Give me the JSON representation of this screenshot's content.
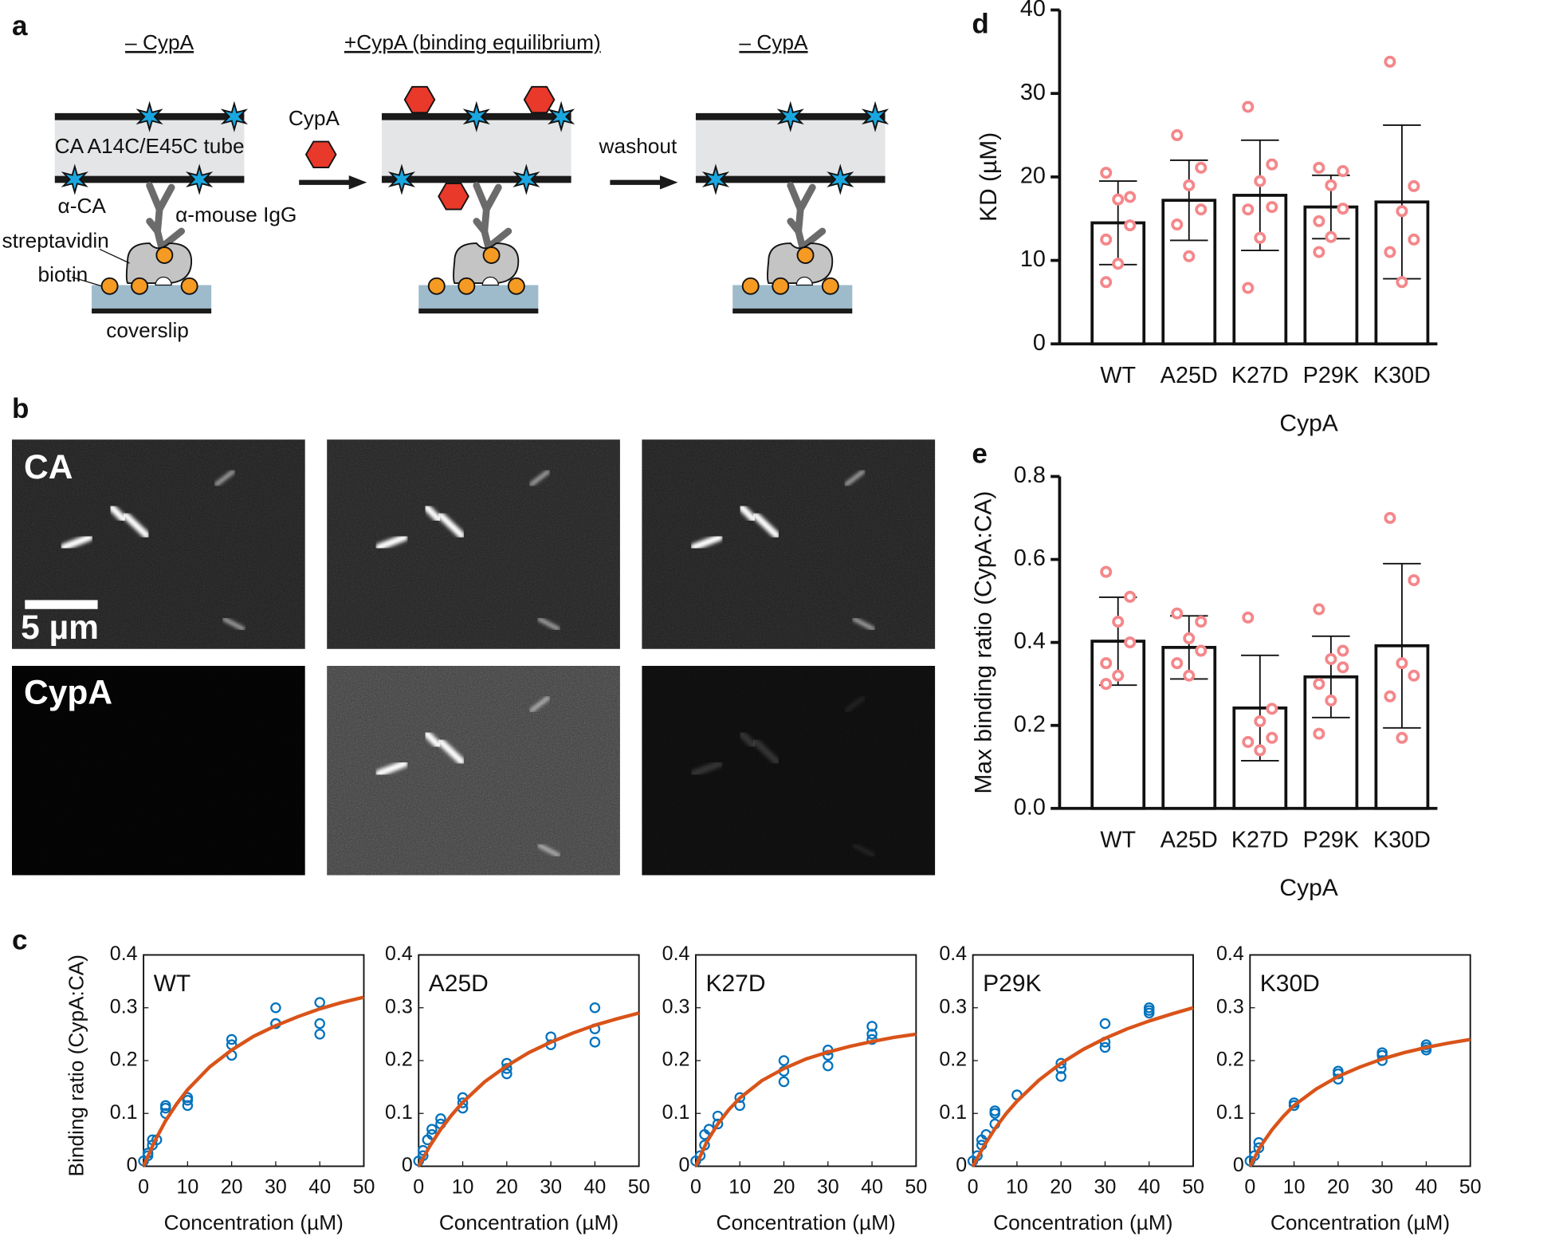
{
  "panel_labels": [
    "a",
    "b",
    "c",
    "d",
    "e"
  ],
  "diagram": {
    "headers": [
      "– CypA",
      "+CypA (binding equilibrium)",
      "– CypA"
    ],
    "tube_label": "CA A14C/E45C tube",
    "reagent": "CypA",
    "wash": "washout",
    "antibody": "α-CA",
    "secondary": "α-mouse IgG",
    "streptavidin": "streptavidin",
    "biotin": "biotin",
    "coverslip": "coverslip"
  },
  "micrographs": {
    "row_labels": [
      "CA",
      "CypA"
    ],
    "scale_bar": "5 µm"
  },
  "chart_data": [
    {
      "type": "scatter",
      "title": "WT",
      "x_label": "Concentration (µM)",
      "y_label": "Binding ratio (CypA:CA)",
      "xlim": [
        0,
        50
      ],
      "ylim": [
        0,
        0.4
      ],
      "xticks": [
        0,
        10,
        20,
        30,
        40,
        50
      ],
      "yticks": [
        0,
        0.1,
        0.2,
        0.3,
        0.4
      ],
      "series": [
        {
          "mode": "markers",
          "color": "#0072bd",
          "x": [
            0,
            1,
            1,
            2,
            2,
            3,
            5,
            5,
            5,
            10,
            10,
            10,
            20,
            20,
            20,
            30,
            30,
            30,
            40,
            40,
            40
          ],
          "values": [
            0.01,
            0.02,
            0.025,
            0.04,
            0.05,
            0.05,
            0.1,
            0.11,
            0.115,
            0.115,
            0.125,
            0.13,
            0.21,
            0.23,
            0.24,
            0.27,
            0.27,
            0.3,
            0.25,
            0.27,
            0.31
          ]
        },
        {
          "mode": "line",
          "color": "#d95319",
          "x": [
            0,
            2.5,
            5,
            7.5,
            10,
            15,
            20,
            25,
            30,
            35,
            40,
            45,
            50
          ],
          "values": [
            0,
            0.047,
            0.086,
            0.118,
            0.145,
            0.188,
            0.22,
            0.246,
            0.266,
            0.283,
            0.298,
            0.31,
            0.32
          ]
        }
      ]
    },
    {
      "type": "scatter",
      "title": "A25D",
      "x_label": "Concentration (µM)",
      "xlim": [
        0,
        50
      ],
      "ylim": [
        0,
        0.4
      ],
      "xticks": [
        0,
        10,
        20,
        30,
        40,
        50
      ],
      "yticks": [
        0,
        0.1,
        0.2,
        0.3,
        0.4
      ],
      "series": [
        {
          "mode": "markers",
          "color": "#0072bd",
          "x": [
            0,
            1,
            1,
            2,
            3,
            3,
            5,
            5,
            10,
            10,
            10,
            20,
            20,
            20,
            30,
            30,
            40,
            40,
            40
          ],
          "values": [
            0.01,
            0.02,
            0.03,
            0.05,
            0.06,
            0.07,
            0.08,
            0.09,
            0.11,
            0.12,
            0.13,
            0.175,
            0.185,
            0.195,
            0.23,
            0.245,
            0.235,
            0.26,
            0.3
          ]
        },
        {
          "mode": "line",
          "color": "#d95319",
          "x": [
            0,
            2.5,
            5,
            7.5,
            10,
            15,
            20,
            25,
            30,
            35,
            40,
            45,
            50
          ],
          "values": [
            0,
            0.038,
            0.07,
            0.097,
            0.121,
            0.16,
            0.19,
            0.215,
            0.235,
            0.252,
            0.267,
            0.279,
            0.29
          ]
        }
      ]
    },
    {
      "type": "scatter",
      "title": "K27D",
      "x_label": "Concentration (µM)",
      "xlim": [
        0,
        50
      ],
      "ylim": [
        0,
        0.4
      ],
      "xticks": [
        0,
        10,
        20,
        30,
        40,
        50
      ],
      "yticks": [
        0,
        0.1,
        0.2,
        0.3,
        0.4
      ],
      "series": [
        {
          "mode": "markers",
          "color": "#0072bd",
          "x": [
            0,
            1,
            2,
            2,
            3,
            5,
            5,
            10,
            10,
            20,
            20,
            20,
            30,
            30,
            30,
            40,
            40,
            40
          ],
          "values": [
            0.01,
            0.02,
            0.04,
            0.06,
            0.07,
            0.08,
            0.095,
            0.115,
            0.13,
            0.16,
            0.18,
            0.2,
            0.19,
            0.21,
            0.22,
            0.24,
            0.25,
            0.265
          ]
        },
        {
          "mode": "line",
          "color": "#d95319",
          "x": [
            0,
            2.5,
            5,
            7.5,
            10,
            15,
            20,
            25,
            30,
            35,
            40,
            45,
            50
          ],
          "values": [
            0,
            0.046,
            0.08,
            0.107,
            0.129,
            0.162,
            0.185,
            0.203,
            0.216,
            0.227,
            0.236,
            0.244,
            0.25
          ]
        }
      ]
    },
    {
      "type": "scatter",
      "title": "P29K",
      "x_label": "Concentration (µM)",
      "xlim": [
        0,
        50
      ],
      "ylim": [
        0,
        0.4
      ],
      "xticks": [
        0,
        10,
        20,
        30,
        40,
        50
      ],
      "yticks": [
        0,
        0.1,
        0.2,
        0.3,
        0.4
      ],
      "series": [
        {
          "mode": "markers",
          "color": "#0072bd",
          "x": [
            0,
            1,
            2,
            2,
            3,
            5,
            5,
            5,
            10,
            20,
            20,
            20,
            30,
            30,
            30,
            40,
            40,
            40
          ],
          "values": [
            0.01,
            0.02,
            0.04,
            0.05,
            0.06,
            0.08,
            0.1,
            0.105,
            0.135,
            0.17,
            0.185,
            0.195,
            0.225,
            0.235,
            0.27,
            0.29,
            0.295,
            0.3
          ]
        },
        {
          "mode": "line",
          "color": "#d95319",
          "x": [
            0,
            2.5,
            5,
            7.5,
            10,
            15,
            20,
            25,
            30,
            35,
            40,
            45,
            50
          ],
          "values": [
            0,
            0.038,
            0.071,
            0.099,
            0.123,
            0.163,
            0.195,
            0.221,
            0.242,
            0.26,
            0.275,
            0.288,
            0.3
          ]
        }
      ]
    },
    {
      "type": "scatter",
      "title": "K30D",
      "x_label": "Concentration (µM)",
      "xlim": [
        0,
        50
      ],
      "ylim": [
        0,
        0.4
      ],
      "xticks": [
        0,
        10,
        20,
        30,
        40,
        50
      ],
      "yticks": [
        0,
        0.1,
        0.2,
        0.3,
        0.4
      ],
      "series": [
        {
          "mode": "markers",
          "color": "#0072bd",
          "x": [
            0,
            1,
            2,
            2,
            10,
            10,
            20,
            20,
            20,
            30,
            30,
            30,
            40,
            40,
            40
          ],
          "values": [
            0.01,
            0.02,
            0.035,
            0.045,
            0.115,
            0.12,
            0.165,
            0.175,
            0.18,
            0.2,
            0.21,
            0.215,
            0.22,
            0.225,
            0.23
          ]
        },
        {
          "mode": "line",
          "color": "#d95319",
          "x": [
            0,
            2.5,
            5,
            7.5,
            10,
            15,
            20,
            25,
            30,
            35,
            40,
            45,
            50
          ],
          "values": [
            0,
            0.039,
            0.069,
            0.094,
            0.115,
            0.146,
            0.17,
            0.188,
            0.203,
            0.215,
            0.225,
            0.233,
            0.24
          ]
        }
      ]
    },
    {
      "type": "bar",
      "x_label": "CypA",
      "y_label": "KD (µM)",
      "categories": [
        "WT",
        "A25D",
        "K27D",
        "P29K",
        "K30D"
      ],
      "values": [
        14.5,
        17.2,
        17.8,
        16.4,
        17.0
      ],
      "errors": [
        5.0,
        4.8,
        6.6,
        3.8,
        9.2
      ],
      "points": [
        [
          20.5,
          17.6,
          17.3,
          14.2,
          12.5,
          9.6,
          7.4
        ],
        [
          25.0,
          21.1,
          19.0,
          16.1,
          14.3,
          10.5
        ],
        [
          28.4,
          21.5,
          19.5,
          16.4,
          16.1,
          12.7,
          6.7
        ],
        [
          21.1,
          20.7,
          19.0,
          16.2,
          14.7,
          12.8,
          11.0
        ],
        [
          33.8,
          18.9,
          15.9,
          12.5,
          11.0,
          7.4
        ]
      ],
      "ylim": [
        0,
        40
      ],
      "yticks": [
        0,
        10,
        20,
        30,
        40
      ],
      "color": "#ffffff",
      "point_color": "#f4878a"
    },
    {
      "type": "bar",
      "x_label": "CypA",
      "y_label": "Max binding ratio (CypA:CA)",
      "categories": [
        "WT",
        "A25D",
        "K27D",
        "P29K",
        "K30D"
      ],
      "values": [
        0.403,
        0.388,
        0.242,
        0.317,
        0.392
      ],
      "errors": [
        0.106,
        0.076,
        0.127,
        0.098,
        0.198
      ],
      "points": [
        [
          0.57,
          0.51,
          0.45,
          0.4,
          0.35,
          0.32,
          0.3
        ],
        [
          0.47,
          0.45,
          0.41,
          0.38,
          0.35,
          0.32
        ],
        [
          0.46,
          0.24,
          0.21,
          0.17,
          0.16,
          0.14
        ],
        [
          0.48,
          0.38,
          0.36,
          0.34,
          0.3,
          0.26,
          0.18
        ],
        [
          0.7,
          0.55,
          0.35,
          0.32,
          0.27,
          0.17
        ]
      ],
      "ylim": [
        0,
        0.8
      ],
      "yticks": [
        {
          "value": 0,
          "label": "0.0"
        },
        0.2,
        0.4,
        0.6,
        0.8
      ],
      "color": "#ffffff",
      "point_color": "#f4878a"
    }
  ]
}
